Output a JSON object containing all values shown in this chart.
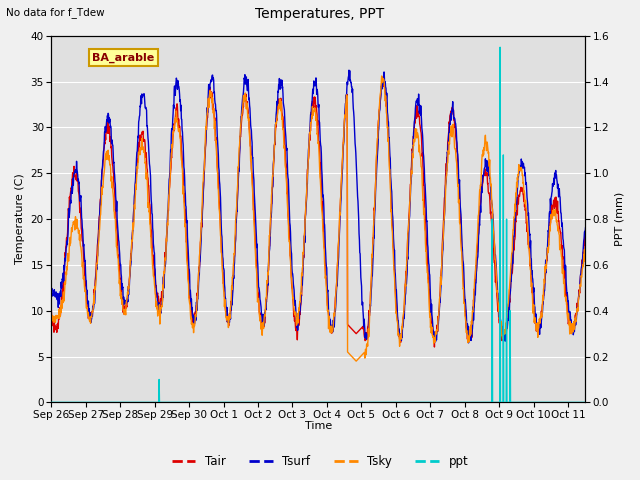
{
  "title": "Temperatures, PPT",
  "subtitle": "No data for f_Tdew",
  "site_label": "BA_arable",
  "xlabel": "Time",
  "ylabel_left": "Temperature (C)",
  "ylabel_right": "PPT (mm)",
  "ylim_left": [
    0,
    40
  ],
  "ylim_right": [
    0.0,
    1.6
  ],
  "xlim": [
    0,
    15.5
  ],
  "xtick_labels": [
    "Sep 26",
    "Sep 27",
    "Sep 28",
    "Sep 29",
    "Sep 30",
    "Oct 1",
    "Oct 2",
    "Oct 3",
    "Oct 4",
    "Oct 5",
    "Oct 6",
    "Oct 7",
    "Oct 8",
    "Oct 9",
    "Oct 10",
    "Oct 11"
  ],
  "xtick_positions": [
    0,
    1,
    2,
    3,
    4,
    5,
    6,
    7,
    8,
    9,
    10,
    11,
    12,
    13,
    14,
    15
  ],
  "yticks_left": [
    0,
    5,
    10,
    15,
    20,
    25,
    30,
    35,
    40
  ],
  "yticks_right": [
    0.0,
    0.2,
    0.4,
    0.6,
    0.8,
    1.0,
    1.2,
    1.4,
    1.6
  ],
  "colors": {
    "Tair": "#dd0000",
    "Tsurf": "#0000cc",
    "Tsky": "#ff8800",
    "ppt": "#00cccc",
    "background": "#e0e0e0",
    "label_bg": "#ffff99",
    "label_edge": "#cc9900",
    "label_text": "#880000",
    "grid": "#ffffff",
    "fig_bg": "#f0f0f0"
  },
  "lw": 1.0,
  "n_per_day": 96,
  "n_days": 16
}
